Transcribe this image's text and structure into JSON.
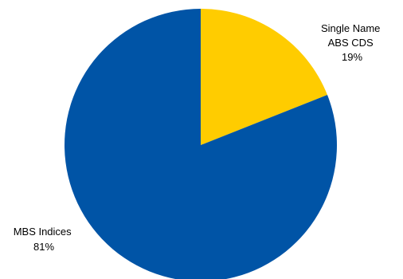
{
  "chart_data": {
    "type": "pie",
    "title": "",
    "slices": [
      {
        "label_lines": [
          "Single Name",
          "ABS CDS"
        ],
        "value": 19,
        "value_label": "19%",
        "color": "#FFCC00"
      },
      {
        "label_lines": [
          "MBS Indices"
        ],
        "value": 81,
        "value_label": "81%",
        "color": "#0054A6"
      }
    ]
  }
}
